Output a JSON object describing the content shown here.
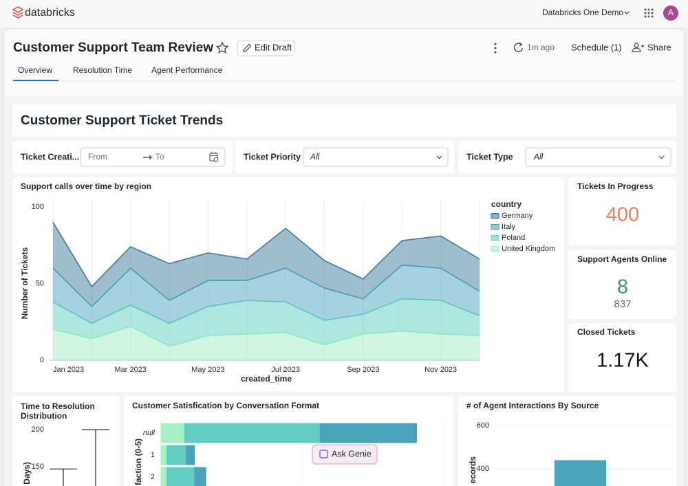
{
  "topbar": {
    "brand": "databricks",
    "workspace": "Databricks One Demo",
    "avatar": "A"
  },
  "header": {
    "title": "Customer Support Team Review",
    "edit_button": "Edit Draft",
    "refreshed": "1m ago",
    "schedule": "Schedule (1)",
    "share": "Share"
  },
  "tabs": [
    "Overview",
    "Resolution Time",
    "Agent Performance"
  ],
  "section_title": "Customer Support Ticket Trends",
  "filters": [
    {
      "label": "Ticket Creati...",
      "from": "From",
      "to": "To"
    },
    {
      "label": "Ticket Priority",
      "value": "All"
    },
    {
      "label": "Ticket Type",
      "value": "All"
    }
  ],
  "kpis": [
    {
      "title": "Tickets In Progress",
      "value": "400"
    },
    {
      "title": "Support Agents Online",
      "value": "8",
      "comparison": "837"
    },
    {
      "title": "Closed Tickets",
      "value": "1.17K"
    }
  ],
  "ask_genie": "Ask Genie",
  "chart_data": [
    {
      "type": "area",
      "stacked": true,
      "title": "Support calls over time by region",
      "x_label": "created_time",
      "y_label": "Number of Tickets",
      "legend_title": "country",
      "legend": "right",
      "grid": true,
      "x": [
        "2023-01",
        "2023-02",
        "2023-03",
        "2023-04",
        "2023-05",
        "2023-06",
        "2023-07",
        "2023-08",
        "2023-09",
        "2023-10",
        "2023-11",
        "2023-12"
      ],
      "xlim": [
        "2023-01",
        "2023-12"
      ],
      "xticks": [
        {
          "value": "2023-01",
          "label": "Jan 2023"
        },
        {
          "value": "2023-03",
          "label": "Mar 2023"
        },
        {
          "value": "2023-05",
          "label": "May 2023"
        },
        {
          "value": "2023-07",
          "label": "Jul 2023"
        },
        {
          "value": "2023-09",
          "label": "Sep 2023"
        },
        {
          "value": "2023-11",
          "label": "Nov 2023"
        }
      ],
      "ylim": [
        0,
        100
      ],
      "yticks": [
        0,
        50,
        100
      ],
      "series": [
        {
          "name": "Germany",
          "color": "#3e7c9b",
          "values": [
            30,
            13,
            14,
            24,
            18,
            14,
            26,
            18,
            13,
            16,
            21,
            21
          ]
        },
        {
          "name": "Italy",
          "color": "#4aa6bd",
          "values": [
            22,
            11,
            24,
            15,
            17,
            13,
            22,
            21,
            10,
            22,
            21,
            16
          ]
        },
        {
          "name": "Poland",
          "color": "#5fd0c2",
          "values": [
            18,
            10,
            14,
            15,
            19,
            22,
            20,
            16,
            13,
            21,
            22,
            13
          ]
        },
        {
          "name": "United Kingdom",
          "color": "#9ff0c0",
          "values": [
            20,
            14,
            22,
            9,
            16,
            17,
            18,
            10,
            17,
            19,
            17,
            16
          ]
        }
      ]
    },
    {
      "type": "box",
      "title": "Time to Resolution Distribution",
      "y_label": "Days)",
      "yticks": [
        150,
        200
      ],
      "whisker_high": [
        147,
        200
      ]
    },
    {
      "type": "hbar",
      "stacked": true,
      "title": "Customer Satisfication by Conversation Format",
      "y_label": "faction (0-5)",
      "categories": [
        "null",
        "1",
        "2"
      ],
      "xlim": [
        0,
        400
      ],
      "series": [
        {
          "color": "#a6f0c6",
          "values": [
            33,
            8,
            8
          ]
        },
        {
          "color": "#62cdc0",
          "values": [
            192,
            27,
            39
          ]
        },
        {
          "color": "#4aa3b8",
          "values": [
            138,
            13,
            17
          ]
        }
      ]
    },
    {
      "type": "bar",
      "title": "# of Agent Interactions By Source",
      "y_label": "ecords",
      "yticks": [
        400,
        600
      ],
      "values": [
        440
      ],
      "color": "#4aa3b8"
    }
  ]
}
